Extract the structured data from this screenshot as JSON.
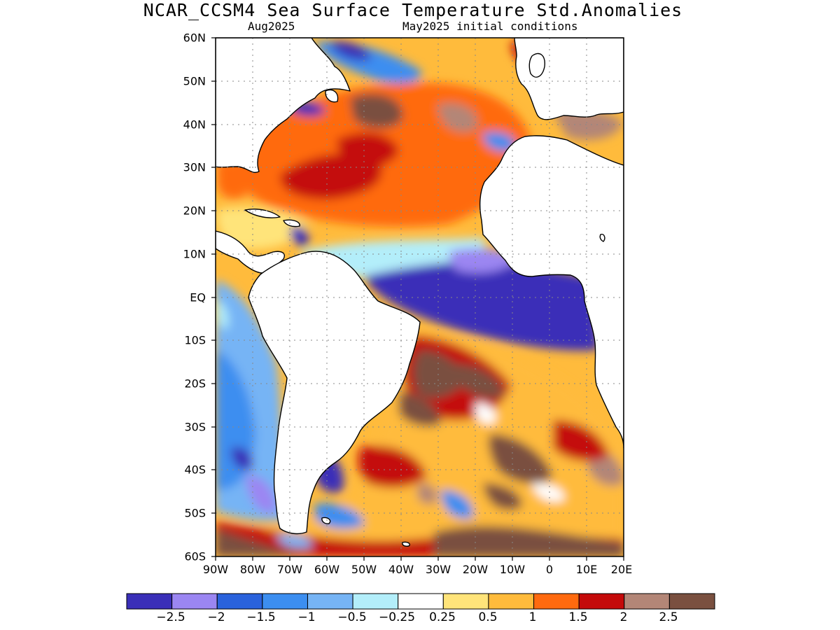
{
  "title": "NCAR_CCSM4 Sea Surface Temperature Std.Anomalies",
  "subtitle_left": "Aug2025",
  "subtitle_right": "May2025 initial conditions",
  "y_ticks": [
    "60N",
    "50N",
    "40N",
    "30N",
    "20N",
    "10N",
    "EQ",
    "10S",
    "20S",
    "30S",
    "40S",
    "50S",
    "60S"
  ],
  "x_ticks": [
    "90W",
    "80W",
    "70W",
    "60W",
    "50W",
    "40W",
    "30W",
    "20W",
    "10W",
    "0",
    "10E",
    "20E"
  ],
  "colorbar": {
    "labels": [
      "−2.5",
      "−2",
      "−1.5",
      "−1",
      "−0.5",
      "−0.25",
      "0.25",
      "0.5",
      "1",
      "1.5",
      "2",
      "2.5"
    ],
    "colors": [
      "#3a2fb8",
      "#9b86f2",
      "#2a62dc",
      "#3c8ef0",
      "#76b4f5",
      "#b3eefa",
      "#ffffff",
      "#ffe47a",
      "#ffbb3c",
      "#ff6a0f",
      "#c40a0a",
      "#b38677",
      "#7a5040"
    ]
  },
  "map": {
    "ocean_anomaly_regions": [
      {
        "region": "North Atlantic subtropics",
        "anomaly_class": "1.5"
      },
      {
        "region": "Tropical Atlantic (Gulf of Guinea)",
        "anomaly_class": "-2.5"
      },
      {
        "region": "South Atlantic midlatitudes",
        "anomaly_class": "2.5"
      },
      {
        "region": "Southeast Pacific off South America",
        "anomaly_class": "-1"
      },
      {
        "region": "Patagonian shelf",
        "anomaly_class": "-2.5"
      }
    ],
    "land_color": "#ffffff",
    "coast_color": "#000000"
  }
}
